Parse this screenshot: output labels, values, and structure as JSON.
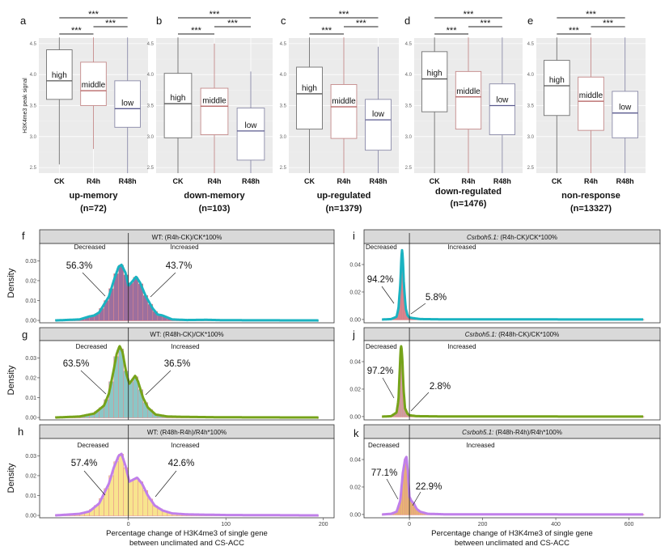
{
  "chart_data": [
    {
      "type": "box",
      "panel": "a",
      "ylabel": "H3K4me3 peak signal",
      "title": "up-memory",
      "subtitle": "(n=72)",
      "categories": [
        "CK",
        "R4h",
        "R48h"
      ],
      "ylim": [
        2.41,
        4.59
      ],
      "yticks": [
        2.5,
        3.0,
        3.5,
        4.0,
        4.5
      ],
      "boxes": [
        {
          "min": 2.55,
          "q1": 3.6,
          "median": 3.9,
          "q3": 4.4,
          "max": 4.6,
          "label": "high"
        },
        {
          "min": 2.8,
          "q1": 3.5,
          "median": 3.74,
          "q3": 4.2,
          "max": 4.6,
          "label": "middle"
        },
        {
          "min": 2.41,
          "q1": 3.15,
          "median": 3.45,
          "q3": 3.9,
          "max": 4.6,
          "label": "low"
        }
      ],
      "significance": [
        "***",
        "***",
        "***"
      ]
    },
    {
      "type": "box",
      "panel": "b",
      "title": "down-memory",
      "subtitle": "(n=103)",
      "categories": [
        "CK",
        "R4h",
        "R48h"
      ],
      "ylim": [
        2.41,
        4.59
      ],
      "yticks": [
        2.5,
        3.0,
        3.5,
        4.0,
        4.5
      ],
      "boxes": [
        {
          "min": 2.41,
          "q1": 2.98,
          "median": 3.53,
          "q3": 4.02,
          "max": 4.6,
          "label": "high"
        },
        {
          "min": 2.41,
          "q1": 3.03,
          "median": 3.49,
          "q3": 3.78,
          "max": 4.5,
          "label": "middle"
        },
        {
          "min": 2.41,
          "q1": 2.62,
          "median": 3.09,
          "q3": 3.46,
          "max": 4.05,
          "label": "low"
        }
      ],
      "significance": [
        "***",
        "***",
        "***"
      ]
    },
    {
      "type": "box",
      "panel": "c",
      "title": "up-regulated",
      "subtitle": "(n=1379)",
      "categories": [
        "CK",
        "R4h",
        "R48h"
      ],
      "ylim": [
        2.41,
        4.59
      ],
      "yticks": [
        2.5,
        3.0,
        3.5,
        4.0,
        4.5
      ],
      "boxes": [
        {
          "min": 2.41,
          "q1": 3.12,
          "median": 3.69,
          "q3": 4.12,
          "max": 4.6,
          "label": "high"
        },
        {
          "min": 2.41,
          "q1": 2.97,
          "median": 3.48,
          "q3": 3.84,
          "max": 4.6,
          "label": "middle"
        },
        {
          "min": 2.41,
          "q1": 2.78,
          "median": 3.27,
          "q3": 3.6,
          "max": 4.45,
          "label": "low"
        }
      ],
      "significance": [
        "***",
        "***",
        "***"
      ]
    },
    {
      "type": "box",
      "panel": "d",
      "title": "down-regulated",
      "subtitle": "(n=1476)",
      "categories": [
        "CK",
        "R4h",
        "R48h"
      ],
      "ylim": [
        2.41,
        4.59
      ],
      "yticks": [
        2.5,
        3.0,
        3.5,
        4.0,
        4.5
      ],
      "boxes": [
        {
          "min": 2.41,
          "q1": 3.4,
          "median": 3.93,
          "q3": 4.37,
          "max": 4.6,
          "label": "high"
        },
        {
          "min": 2.41,
          "q1": 3.12,
          "median": 3.64,
          "q3": 4.05,
          "max": 4.6,
          "label": "middle"
        },
        {
          "min": 2.41,
          "q1": 3.03,
          "median": 3.5,
          "q3": 3.85,
          "max": 4.6,
          "label": "low"
        }
      ],
      "significance": [
        "***",
        "***",
        "***"
      ]
    },
    {
      "type": "box",
      "panel": "e",
      "title": "non-response",
      "subtitle": "(n=13327)",
      "categories": [
        "CK",
        "R4h",
        "R48h"
      ],
      "ylim": [
        2.41,
        4.59
      ],
      "yticks": [
        2.5,
        3.0,
        3.5,
        4.0,
        4.5
      ],
      "boxes": [
        {
          "min": 2.41,
          "q1": 3.34,
          "median": 3.82,
          "q3": 4.23,
          "max": 4.6,
          "label": "high"
        },
        {
          "min": 2.41,
          "q1": 3.1,
          "median": 3.57,
          "q3": 3.96,
          "max": 4.6,
          "label": "middle"
        },
        {
          "min": 2.41,
          "q1": 2.98,
          "median": 3.38,
          "q3": 3.73,
          "max": 4.6,
          "label": "low"
        }
      ],
      "significance": [
        "***",
        "***",
        "***"
      ]
    },
    {
      "type": "histogram-density",
      "panel": "f",
      "strip": {
        "italic": "",
        "text": "WT: (R4h-CK)/CK*100%"
      },
      "ylabel": "Density",
      "xlim": [
        -91,
        211
      ],
      "ylim": [
        -0.0012,
        0.0387
      ],
      "xticks": [],
      "yticks": [
        "0.00",
        "0.01",
        "0.02",
        "0.03"
      ],
      "labels": {
        "decreased": "Decreased",
        "increased": "Increased",
        "decreased_pct": "56.3%",
        "increased_pct": "43.7%"
      },
      "colors": {
        "fill": "#9c6f9e",
        "border": "#e48a8a",
        "line": "#1ab3c1"
      },
      "bin_width": 5,
      "density": [
        [
          -75,
          0
        ],
        [
          -50,
          0.0005
        ],
        [
          -40,
          0.002
        ],
        [
          -35,
          0.0025
        ],
        [
          -30,
          0.004
        ],
        [
          -20,
          0.012
        ],
        [
          -15,
          0.02
        ],
        [
          -10,
          0.027
        ],
        [
          -7,
          0.028
        ],
        [
          -3,
          0.024
        ],
        [
          0,
          0.0175
        ],
        [
          3,
          0.019
        ],
        [
          8,
          0.022
        ],
        [
          12,
          0.019
        ],
        [
          18,
          0.012
        ],
        [
          25,
          0.006
        ],
        [
          30,
          0.003
        ],
        [
          35,
          0.0025
        ],
        [
          45,
          0.0005
        ],
        [
          60,
          0.0002
        ],
        [
          80,
          0.0003
        ],
        [
          100,
          0.0001
        ],
        [
          195,
          0
        ]
      ]
    },
    {
      "type": "histogram-density",
      "panel": "g",
      "strip": {
        "italic": "",
        "text": "WT: (R48h-CK)/CK*100%"
      },
      "ylabel": "Density",
      "xlim": [
        -91,
        211
      ],
      "ylim": [
        -0.0012,
        0.0387
      ],
      "xticks": [],
      "yticks": [
        "0.00",
        "0.01",
        "0.02",
        "0.03"
      ],
      "labels": {
        "decreased": "Decreased",
        "increased": "Increased",
        "decreased_pct": "63.5%",
        "increased_pct": "36.5%"
      },
      "colors": {
        "fill": "#8cc6c6",
        "border": "#e48a8a",
        "line": "#76a31a"
      },
      "bin_width": 5,
      "density": [
        [
          -75,
          0
        ],
        [
          -50,
          0.0005
        ],
        [
          -35,
          0.002
        ],
        [
          -25,
          0.006
        ],
        [
          -20,
          0.012
        ],
        [
          -15,
          0.024
        ],
        [
          -12,
          0.032
        ],
        [
          -9,
          0.036
        ],
        [
          -6,
          0.033
        ],
        [
          -2,
          0.022
        ],
        [
          1,
          0.017
        ],
        [
          4,
          0.019
        ],
        [
          7,
          0.021
        ],
        [
          10,
          0.018
        ],
        [
          15,
          0.01
        ],
        [
          20,
          0.005
        ],
        [
          28,
          0.0015
        ],
        [
          40,
          0.0005
        ],
        [
          60,
          0.0003
        ],
        [
          100,
          0.0001
        ],
        [
          195,
          0
        ]
      ]
    },
    {
      "type": "histogram-density",
      "panel": "h",
      "strip": {
        "italic": "",
        "text": "WT: (R48h-R4h)/R4h*100%"
      },
      "ylabel": "Density",
      "xlabel": [
        "Percentage change of H3K4me3 of single gene",
        "between unclimated and CS-ACC"
      ],
      "xlim": [
        -91,
        211
      ],
      "ylim": [
        -0.0012,
        0.0387
      ],
      "xticks": [
        "0",
        "100",
        "200"
      ],
      "yticks": [
        "0.00",
        "0.01",
        "0.02",
        "0.03"
      ],
      "labels": {
        "decreased": "Decreased",
        "increased": "Increased",
        "decreased_pct": "57.4%",
        "increased_pct": "42.6%"
      },
      "colors": {
        "fill": "#f8e48e",
        "border": "#e48a8a",
        "line": "#c07fea"
      },
      "bin_width": 5,
      "density": [
        [
          -75,
          0
        ],
        [
          -50,
          0.0008
        ],
        [
          -40,
          0.002
        ],
        [
          -30,
          0.006
        ],
        [
          -20,
          0.016
        ],
        [
          -15,
          0.024
        ],
        [
          -10,
          0.03
        ],
        [
          -7,
          0.031
        ],
        [
          -3,
          0.025
        ],
        [
          1,
          0.017
        ],
        [
          5,
          0.018
        ],
        [
          9,
          0.019
        ],
        [
          14,
          0.016
        ],
        [
          20,
          0.01
        ],
        [
          27,
          0.005
        ],
        [
          35,
          0.0025
        ],
        [
          45,
          0.001
        ],
        [
          60,
          0.0005
        ],
        [
          100,
          0.0002
        ],
        [
          195,
          0
        ]
      ]
    },
    {
      "type": "histogram-density",
      "panel": "i",
      "strip": {
        "italic": "Csrboh5.1:",
        "text": " (R4h-CK)/CK*100%"
      },
      "xlim": [
        -124,
        685
      ],
      "ylim": [
        -0.0024,
        0.0553
      ],
      "xticks": [],
      "yticks": [
        "0.00",
        "0.02",
        "0.04"
      ],
      "labels": {
        "decreased": "Decreased",
        "increased": "Increased",
        "decreased_pct": "94.2%",
        "increased_pct": "5.8%"
      },
      "colors": {
        "fill": "#d27f8c",
        "border": "#e48a8a",
        "line": "#1ab3c1"
      },
      "bin_width": 4,
      "density": [
        [
          -75,
          0
        ],
        [
          -50,
          0.0003
        ],
        [
          -35,
          0.002
        ],
        [
          -30,
          0.008
        ],
        [
          -25,
          0.025
        ],
        [
          -22,
          0.045
        ],
        [
          -20,
          0.051
        ],
        [
          -18,
          0.045
        ],
        [
          -15,
          0.025
        ],
        [
          -10,
          0.008
        ],
        [
          -5,
          0.003
        ],
        [
          0,
          0.0015
        ],
        [
          10,
          0.001
        ],
        [
          30,
          0.0003
        ],
        [
          100,
          0.0001
        ],
        [
          640,
          0
        ]
      ]
    },
    {
      "type": "histogram-density",
      "panel": "j",
      "strip": {
        "italic": "Csrboh5.1:",
        "text": " (R48h-CK)/CK*100%"
      },
      "xlim": [
        -124,
        685
      ],
      "ylim": [
        -0.0024,
        0.0553
      ],
      "xticks": [],
      "yticks": [
        "0.00",
        "0.02",
        "0.04"
      ],
      "labels": {
        "decreased": "Decreased",
        "increased": "Increased",
        "decreased_pct": "97.2%",
        "increased_pct": "2.8%"
      },
      "colors": {
        "fill": "#c9a3a6",
        "border": "#e48a8a",
        "line": "#76a31a"
      },
      "bin_width": 4,
      "density": [
        [
          -75,
          0
        ],
        [
          -50,
          0.0003
        ],
        [
          -35,
          0.003
        ],
        [
          -30,
          0.012
        ],
        [
          -27,
          0.03
        ],
        [
          -24,
          0.049
        ],
        [
          -22,
          0.052
        ],
        [
          -19,
          0.04
        ],
        [
          -16,
          0.02
        ],
        [
          -12,
          0.006
        ],
        [
          -5,
          0.002
        ],
        [
          0,
          0.001
        ],
        [
          20,
          0.0003
        ],
        [
          100,
          0.0001
        ],
        [
          640,
          0
        ]
      ]
    },
    {
      "type": "histogram-density",
      "panel": "k",
      "strip": {
        "italic": "Csrboh5.1:",
        "text": " (R48h-R4h)/R4h*100%"
      },
      "xlabel": [
        "Percentage change of H3K4me3 of single gene",
        "between unclimated and CS-ACC"
      ],
      "xlim": [
        -124,
        685
      ],
      "ylim": [
        -0.0024,
        0.0553
      ],
      "xticks": [
        "0",
        "200",
        "400",
        "600"
      ],
      "yticks": [
        "0.00",
        "0.02",
        "0.04"
      ],
      "labels": {
        "decreased": "Decreased",
        "increased": "Increased",
        "decreased_pct": "77.1%",
        "increased_pct": "22.9%"
      },
      "colors": {
        "fill": "#e8bf70",
        "border": "#e48a8a",
        "line": "#c07fea"
      },
      "bin_width": 4,
      "density": [
        [
          -75,
          0
        ],
        [
          -50,
          0.0005
        ],
        [
          -35,
          0.002
        ],
        [
          -25,
          0.01
        ],
        [
          -18,
          0.03
        ],
        [
          -12,
          0.04
        ],
        [
          -8,
          0.042
        ],
        [
          -4,
          0.03
        ],
        [
          0,
          0.013
        ],
        [
          5,
          0.01
        ],
        [
          12,
          0.008
        ],
        [
          20,
          0.004
        ],
        [
          30,
          0.002
        ],
        [
          50,
          0.0005
        ],
        [
          100,
          0.0001
        ],
        [
          640,
          0
        ]
      ]
    }
  ],
  "box_colors": {
    "CK": "#707070",
    "R4h": "#c48a8a",
    "R48h": "#8a8aa8"
  },
  "median_colors": {
    "CK": "#555555",
    "R4h": "#b05a5a",
    "R48h": "#5a5a8e"
  }
}
